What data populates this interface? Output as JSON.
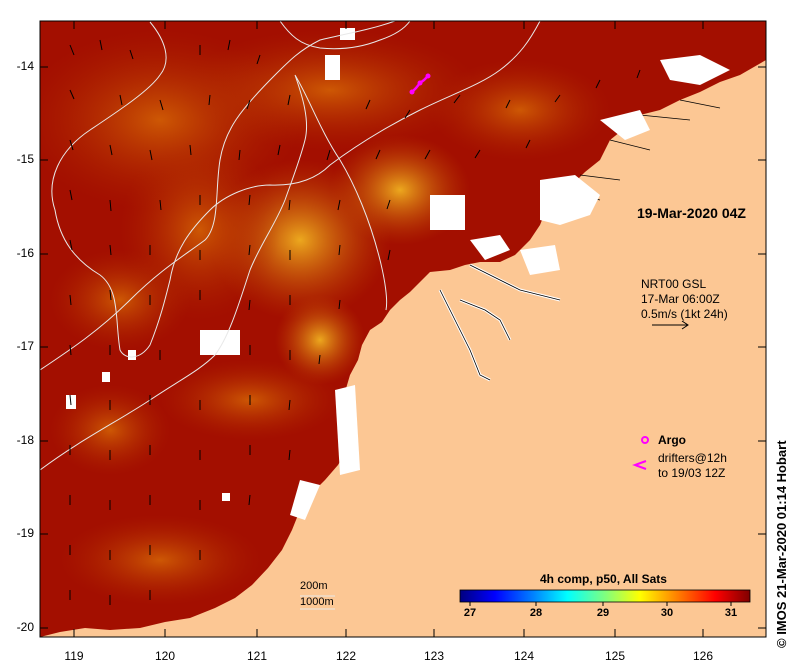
{
  "map": {
    "timestamp_label": "19-Mar-2020 04Z",
    "currents": {
      "line1": "NRT00 GSL",
      "line2": "17-Mar 06:00Z",
      "line3": "0.5m/s (1kt 24h)"
    },
    "legend": {
      "argo_label": "Argo",
      "drifters_line1": "drifters@12h",
      "drifters_line2": "to 19/03 12Z",
      "argo_color": "#ff00ff",
      "drifter_color": "#ff00ff"
    },
    "depth_contours": {
      "line1": "200m",
      "line2": "1000m"
    },
    "colorbar": {
      "title": "4h comp, p50, All Sats",
      "ticks": [
        "27",
        "28",
        "29",
        "30",
        "31"
      ],
      "min": 26.6,
      "max": 31.5,
      "colors": [
        "#00007f",
        "#0000ff",
        "#007fff",
        "#00ffff",
        "#7fff7f",
        "#ffff00",
        "#ff7f00",
        "#ff0000",
        "#7f0000"
      ]
    },
    "y_axis_ticks": [
      "-14",
      "-15",
      "-16",
      "-17",
      "-18",
      "-19",
      "-20"
    ],
    "x_axis_ticks": [
      "119",
      "120",
      "121",
      "122",
      "123",
      "124",
      "125",
      "126"
    ],
    "credit": "© IMOS 21-Mar-2020 01:14 Hobart",
    "colors": {
      "land": "#fcc794",
      "sst_warm": "#a30f00",
      "sst_mid": "#c24a00",
      "sst_hot": "#e89a10",
      "cloud": "#ffffff"
    }
  }
}
